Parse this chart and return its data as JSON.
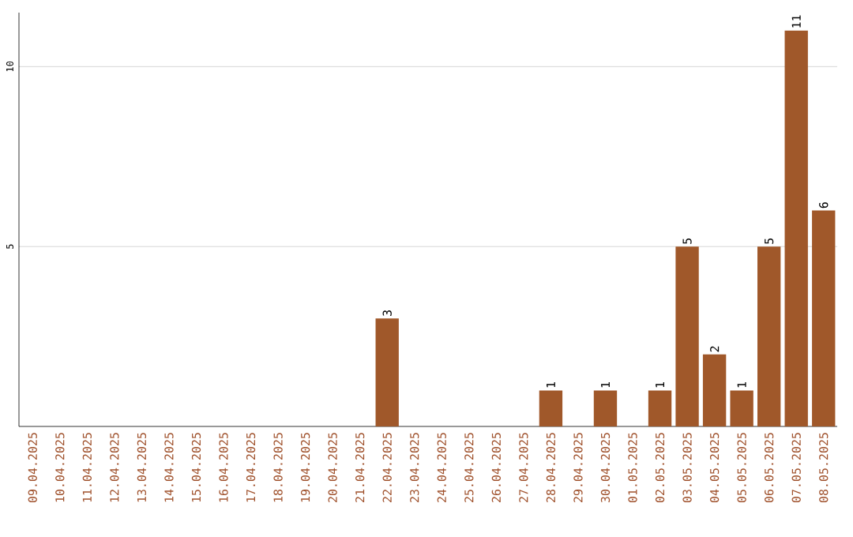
{
  "chart_data": {
    "type": "bar",
    "categories": [
      "09.04.2025",
      "10.04.2025",
      "11.04.2025",
      "12.04.2025",
      "13.04.2025",
      "14.04.2025",
      "15.04.2025",
      "16.04.2025",
      "17.04.2025",
      "18.04.2025",
      "19.04.2025",
      "20.04.2025",
      "21.04.2025",
      "22.04.2025",
      "23.04.2025",
      "24.04.2025",
      "25.04.2025",
      "26.04.2025",
      "27.04.2025",
      "28.04.2025",
      "29.04.2025",
      "30.04.2025",
      "01.05.2025",
      "02.05.2025",
      "03.05.2025",
      "04.05.2025",
      "05.05.2025",
      "06.05.2025",
      "07.05.2025",
      "08.05.2025"
    ],
    "values": [
      0,
      0,
      0,
      0,
      0,
      0,
      0,
      0,
      0,
      0,
      0,
      0,
      0,
      3,
      0,
      0,
      0,
      0,
      0,
      1,
      0,
      1,
      0,
      1,
      5,
      2,
      1,
      5,
      11,
      6
    ],
    "value_labels": [
      null,
      null,
      null,
      null,
      null,
      null,
      null,
      null,
      null,
      null,
      null,
      null,
      null,
      "3",
      null,
      null,
      null,
      null,
      null,
      "1",
      null,
      "1",
      null,
      "1",
      "5",
      "2",
      "1",
      "5",
      "11",
      "6"
    ],
    "color": "#a0582a",
    "ylim": [
      0,
      11.5
    ],
    "yticks": [
      5,
      10
    ],
    "grid": "y"
  }
}
